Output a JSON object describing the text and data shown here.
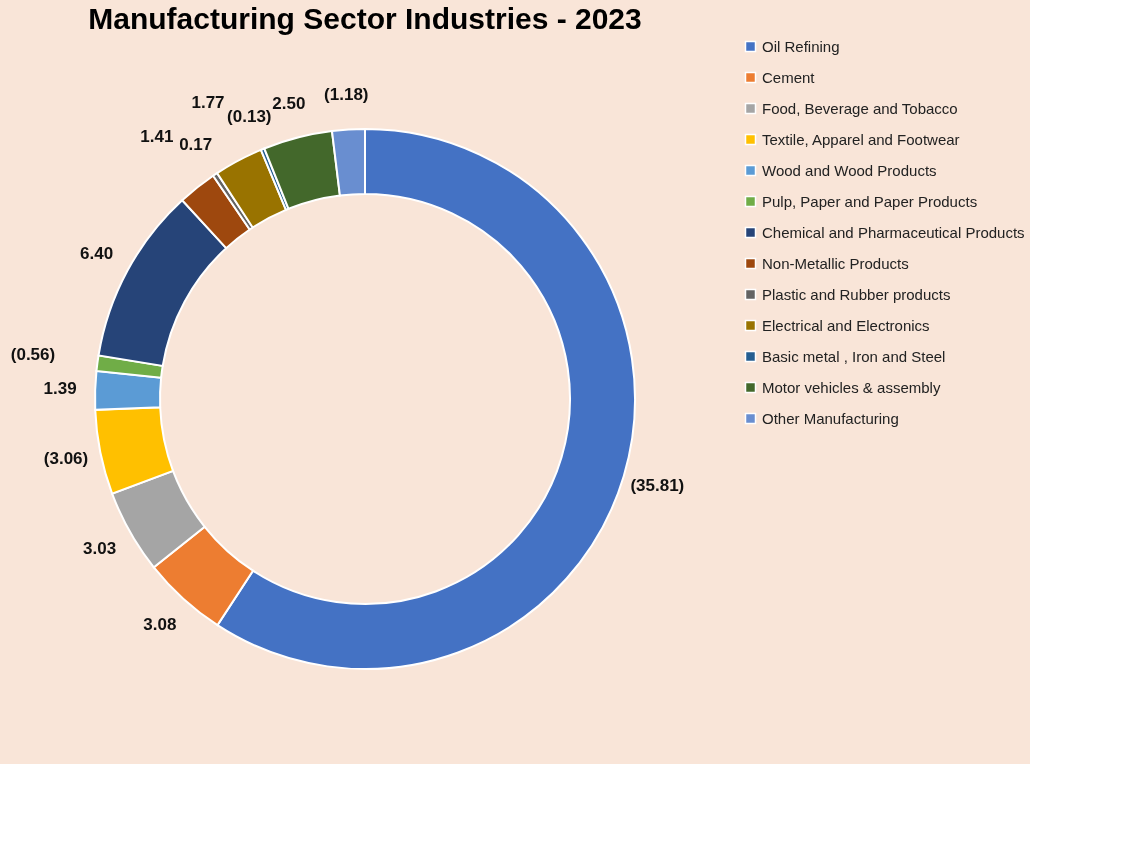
{
  "chart_data": {
    "type": "donut",
    "title": "Manufacturing Sector Industries - 2023",
    "categories": [
      "Oil Refining",
      "Cement",
      "Food, Beverage and Tobacco",
      "Textile, Apparel and Footwear",
      "Wood and Wood Products",
      "Pulp, Paper and Paper Products",
      "Chemical and Pharmaceutical Products",
      "Non-Metallic Products",
      "Plastic and Rubber products",
      "Electrical and Electronics",
      "Basic metal , Iron and Steel",
      "Motor vehicles &  assembly",
      "Other Manufacturing"
    ],
    "values": [
      35.81,
      3.08,
      3.03,
      3.06,
      1.39,
      0.56,
      6.4,
      1.41,
      0.17,
      1.77,
      0.13,
      2.5,
      1.18
    ],
    "value_labels": [
      "(35.81)",
      "3.08",
      "3.03",
      "(3.06)",
      "1.39",
      "(0.56)",
      "6.40",
      "1.41",
      "0.17",
      "1.77",
      "(0.13)",
      "2.50",
      "(1.18)"
    ],
    "colors": [
      "#4472c4",
      "#ed7d31",
      "#a5a5a5",
      "#ffc000",
      "#5b9bd5",
      "#70ad47",
      "#264478",
      "#9e480e",
      "#636363",
      "#997300",
      "#255e91",
      "#43682b",
      "#698ed0"
    ],
    "legend": "right"
  }
}
